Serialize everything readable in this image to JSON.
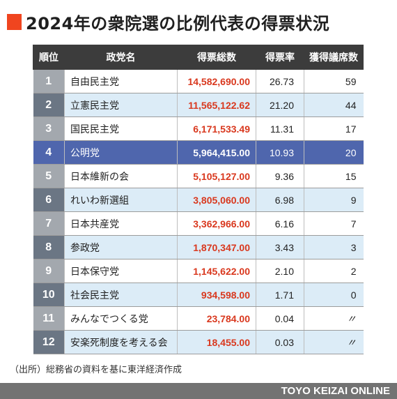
{
  "title": "2024年の衆院選の比例代表の得票状況",
  "table": {
    "headers": [
      "順位",
      "政党名",
      "得票総数",
      "得票率",
      "獲得議席数"
    ],
    "rows": [
      {
        "rank": "1",
        "party": "自由民主党",
        "votes": "14,582,690.00",
        "rate": "26.73",
        "seats": "59"
      },
      {
        "rank": "2",
        "party": "立憲民主党",
        "votes": "11,565,122.62",
        "rate": "21.20",
        "seats": "44"
      },
      {
        "rank": "3",
        "party": "国民民主党",
        "votes": "6,171,533.49",
        "rate": "11.31",
        "seats": "17"
      },
      {
        "rank": "4",
        "party": "公明党",
        "votes": "5,964,415.00",
        "rate": "10.93",
        "seats": "20"
      },
      {
        "rank": "5",
        "party": "日本維新の会",
        "votes": "5,105,127.00",
        "rate": "9.36",
        "seats": "15"
      },
      {
        "rank": "6",
        "party": "れいわ新選組",
        "votes": "3,805,060.00",
        "rate": "6.98",
        "seats": "9"
      },
      {
        "rank": "7",
        "party": "日本共産党",
        "votes": "3,362,966.00",
        "rate": "6.16",
        "seats": "7"
      },
      {
        "rank": "8",
        "party": "参政党",
        "votes": "1,870,347.00",
        "rate": "3.43",
        "seats": "3"
      },
      {
        "rank": "9",
        "party": "日本保守党",
        "votes": "1,145,622.00",
        "rate": "2.10",
        "seats": "2"
      },
      {
        "rank": "10",
        "party": "社会民主党",
        "votes": "934,598.00",
        "rate": "1.71",
        "seats": "0"
      },
      {
        "rank": "11",
        "party": "みんなでつくる党",
        "votes": "23,784.00",
        "rate": "0.04",
        "seats": "〃"
      },
      {
        "rank": "12",
        "party": "安楽死制度を考える会",
        "votes": "18,455.00",
        "rate": "0.03",
        "seats": "〃"
      }
    ]
  },
  "source": "（出所）総務省の資料を基に東洋経済作成",
  "footer": "TOYO KEIZAI ONLINE",
  "colors": {
    "accent": "#f0451f",
    "header_bg": "#3c3c3c",
    "votes_red": "#d9381e",
    "highlight_row": "#4f66ad",
    "alt_row": "#dcecf7"
  }
}
